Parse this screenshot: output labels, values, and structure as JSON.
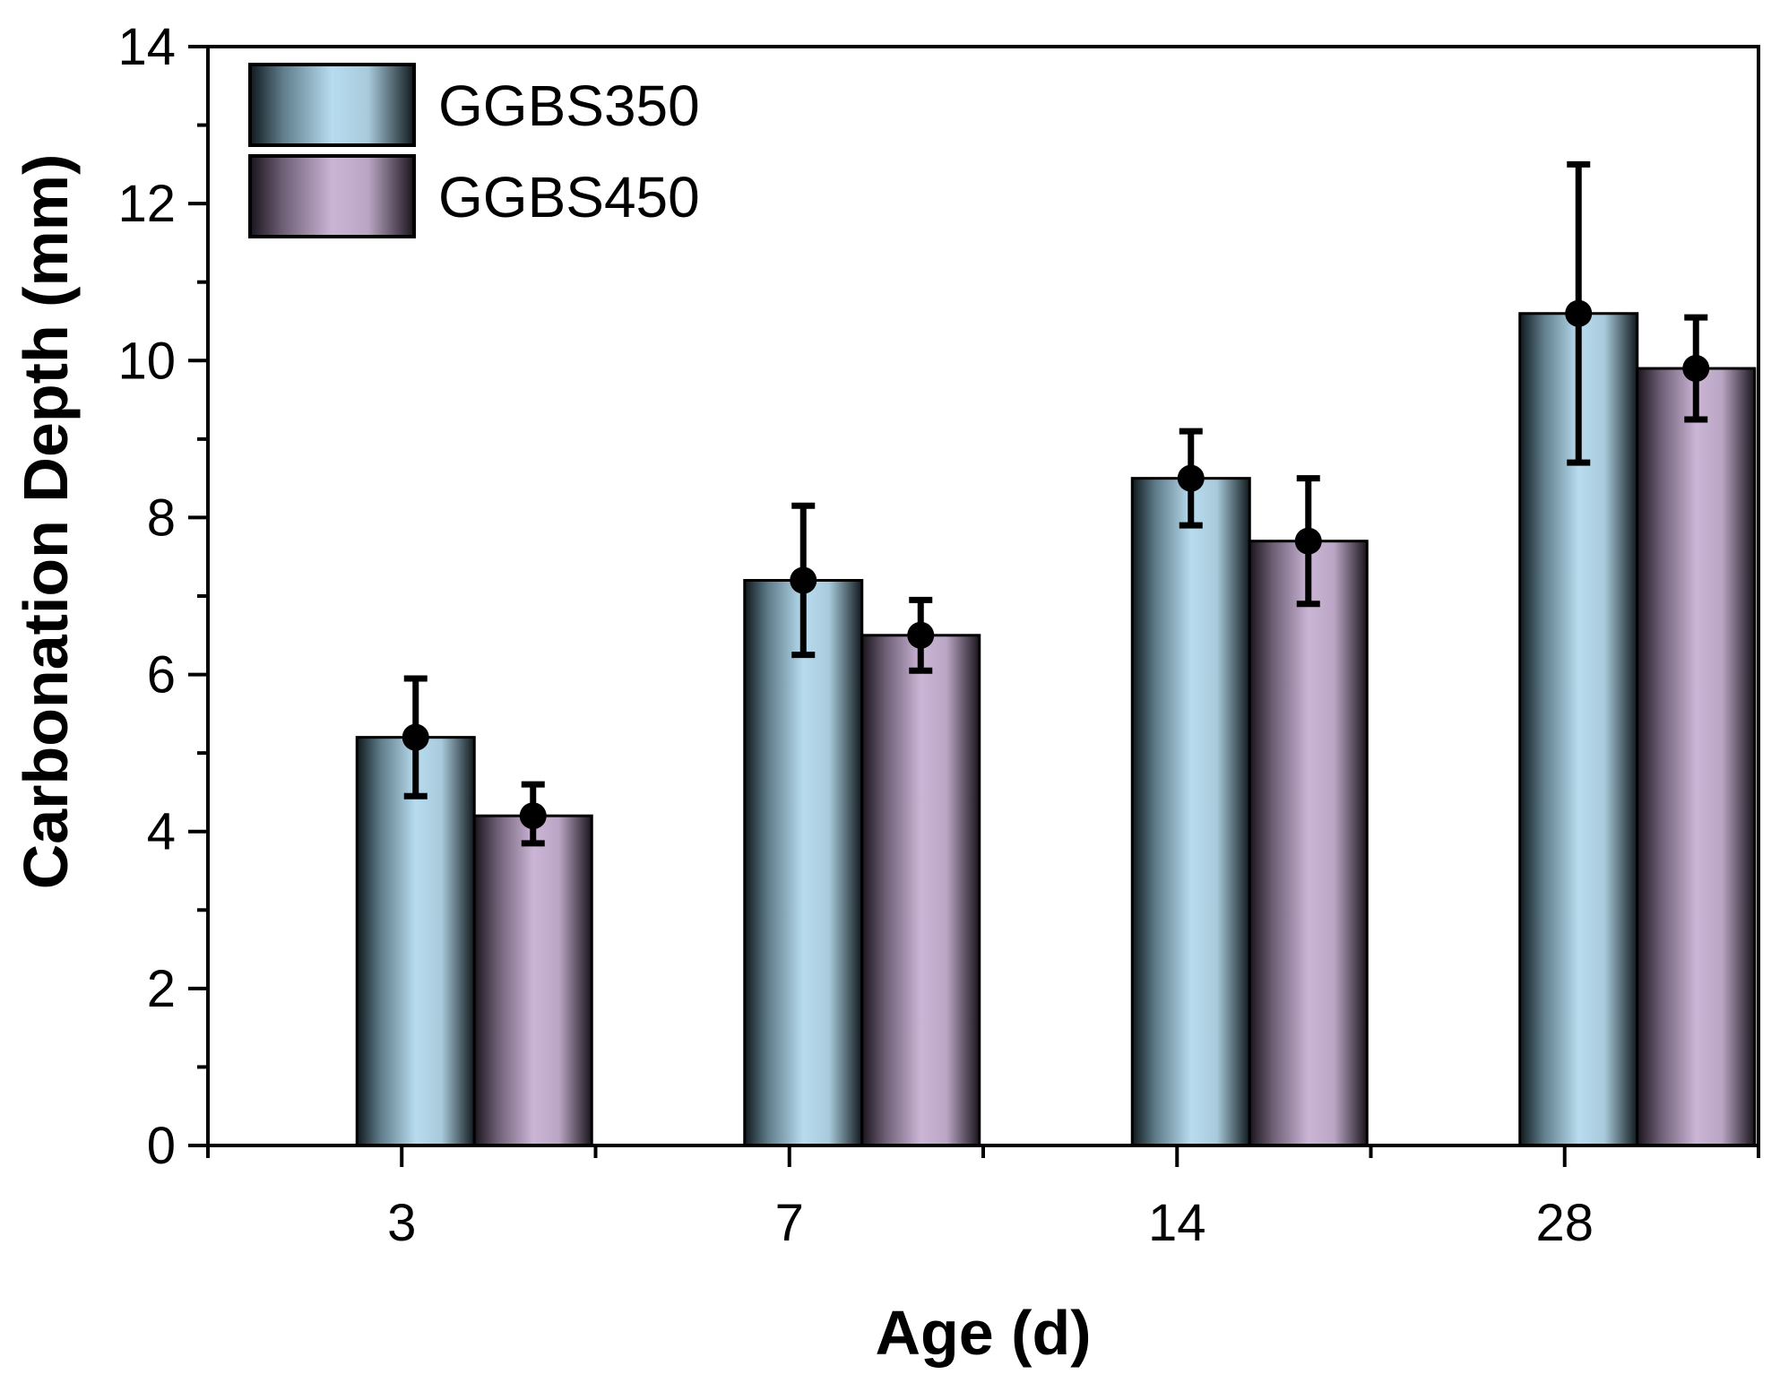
{
  "chart_data": {
    "type": "bar",
    "title": "",
    "xlabel": "Age (d)",
    "ylabel": "Carbonation Depth (mm)",
    "categories": [
      "3",
      "7",
      "14",
      "28"
    ],
    "ylim": [
      0,
      14
    ],
    "yticks": [
      0,
      2,
      4,
      6,
      8,
      10,
      12,
      14
    ],
    "grid": false,
    "legend_position": "top-left",
    "series": [
      {
        "name": "GGBS350",
        "color": "#b8dcef",
        "values": [
          5.2,
          7.2,
          8.5,
          10.6
        ],
        "error": [
          [
            4.45,
            5.95
          ],
          [
            6.25,
            8.15
          ],
          [
            7.9,
            9.1
          ],
          [
            8.7,
            12.5
          ]
        ]
      },
      {
        "name": "GGBS450",
        "color": "#cbb5d6",
        "values": [
          4.2,
          6.5,
          7.7,
          9.9
        ],
        "error": [
          [
            3.85,
            4.6
          ],
          [
            6.05,
            6.95
          ],
          [
            6.9,
            8.5
          ],
          [
            9.25,
            10.55
          ]
        ]
      }
    ]
  }
}
